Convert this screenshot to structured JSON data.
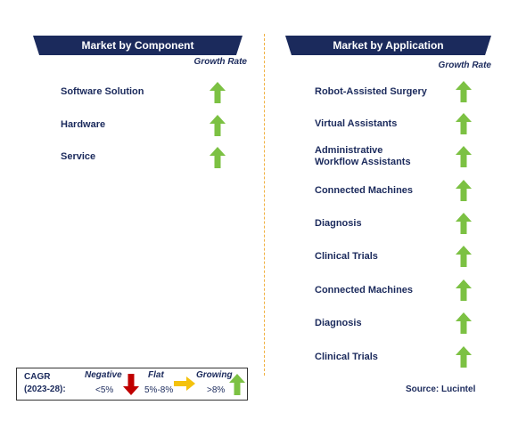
{
  "left_panel": {
    "title": "Market by Component",
    "column_label": "Growth Rate",
    "items": [
      "Software Solution",
      "Hardware",
      "Service"
    ]
  },
  "right_panel": {
    "title": "Market by Application",
    "column_label": "Growth Rate",
    "items": [
      "Robot-Assisted Surgery",
      "Virtual Assistants",
      "Administrative\nWorkflow Assistants",
      "Connected Machines",
      "Diagnosis",
      "Clinical Trials",
      "Connected Machines",
      "Diagnosis",
      "Clinical Trials"
    ]
  },
  "legend": {
    "label": "CAGR\n(2023-28):",
    "levels": [
      {
        "name": "Negative",
        "range": "<5%"
      },
      {
        "name": "Flat",
        "range": "5%-8%"
      },
      {
        "name": "Growing",
        "range": ">8%"
      }
    ]
  },
  "source": "Source: Lucintel"
}
